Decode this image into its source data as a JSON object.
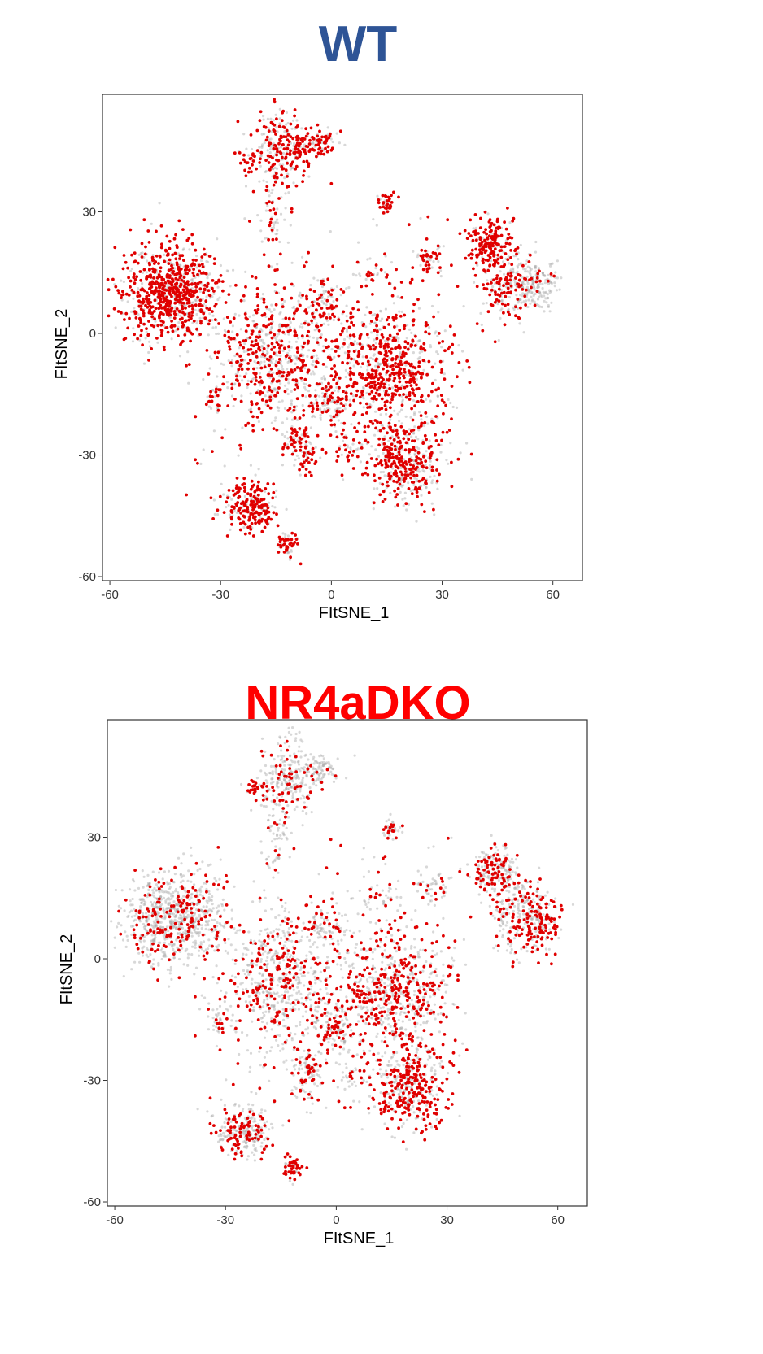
{
  "colors": {
    "wt_title": "#2e5496",
    "ko_title": "#ff0000",
    "highlight_point": "#e00000",
    "background_point": "#a8a8a8",
    "frame": "#333333"
  },
  "chart_data": [
    {
      "type": "scatter",
      "title": "WT",
      "xlabel": "FItSNE_1",
      "ylabel": "FItSNE_2",
      "xlim": [
        -62,
        68
      ],
      "ylim": [
        -61,
        59
      ],
      "xticks": [
        -60,
        -30,
        0,
        30,
        60
      ],
      "yticks": [
        -60,
        -30,
        0,
        30
      ],
      "xtick_labels": [
        "-60",
        "-30",
        "0",
        "30",
        "60"
      ],
      "ytick_labels": [
        "-60",
        "-30",
        "0",
        "30"
      ],
      "grid": false,
      "legend": "none",
      "highlight_fraction": 0.6,
      "series": [
        {
          "color": "#a8a8a8",
          "values": "background cells"
        },
        {
          "color": "#e00000",
          "values": "highlighted cells"
        }
      ],
      "clusters": [
        {
          "cx": -45,
          "cy": 10,
          "sx": 6,
          "sy": 6,
          "n": 700,
          "hi": 0.7
        },
        {
          "cx": -36,
          "cy": 10,
          "sx": 4,
          "sy": 5,
          "n": 120,
          "hi": 0.4
        },
        {
          "cx": -13,
          "cy": 45,
          "sx": 4,
          "sy": 5,
          "n": 260,
          "hi": 0.5
        },
        {
          "cx": -4,
          "cy": 47,
          "sx": 3,
          "sy": 2,
          "n": 80,
          "hi": 0.75
        },
        {
          "cx": -22,
          "cy": 43,
          "sx": 1.5,
          "sy": 1.5,
          "n": 20,
          "hi": 0.9
        },
        {
          "cx": -16,
          "cy": 30,
          "sx": 2,
          "sy": 5,
          "n": 60,
          "hi": 0.4
        },
        {
          "cx": 15,
          "cy": 32,
          "sx": 1.2,
          "sy": 1.2,
          "n": 40,
          "hi": 0.6
        },
        {
          "cx": 26,
          "cy": 18,
          "sx": 2,
          "sy": 2,
          "n": 50,
          "hi": 0.7
        },
        {
          "cx": 43,
          "cy": 22,
          "sx": 3,
          "sy": 3,
          "n": 180,
          "hi": 0.8
        },
        {
          "cx": 48,
          "cy": 12,
          "sx": 4,
          "sy": 5,
          "n": 200,
          "hi": 0.5
        },
        {
          "cx": 55,
          "cy": 12,
          "sx": 3,
          "sy": 3,
          "n": 180,
          "hi": 0.05
        },
        {
          "cx": -15,
          "cy": -5,
          "sx": 8,
          "sy": 9,
          "n": 650,
          "hi": 0.5
        },
        {
          "cx": -2,
          "cy": 8,
          "sx": 3,
          "sy": 3,
          "n": 80,
          "hi": 0.5
        },
        {
          "cx": 15,
          "cy": -8,
          "sx": 8,
          "sy": 8,
          "n": 700,
          "hi": 0.6
        },
        {
          "cx": 0,
          "cy": -17,
          "sx": 3,
          "sy": 3,
          "n": 100,
          "hi": 0.5
        },
        {
          "cx": -8,
          "cy": -28,
          "sx": 2.5,
          "sy": 3,
          "n": 100,
          "hi": 0.6
        },
        {
          "cx": 20,
          "cy": -32,
          "sx": 5,
          "sy": 5,
          "n": 400,
          "hi": 0.55
        },
        {
          "cx": 5,
          "cy": -29,
          "sx": 2,
          "sy": 1.5,
          "n": 30,
          "hi": 0.5
        },
        {
          "cx": -32,
          "cy": -16,
          "sx": 1,
          "sy": 2,
          "n": 25,
          "hi": 0.6
        },
        {
          "cx": -22,
          "cy": -43,
          "sx": 4,
          "sy": 3,
          "n": 250,
          "hi": 0.7
        },
        {
          "cx": -12,
          "cy": -52,
          "sx": 1.5,
          "sy": 1.5,
          "n": 50,
          "hi": 0.7
        },
        {
          "cx": 12,
          "cy": 15,
          "sx": 3,
          "sy": 1.5,
          "n": 30,
          "hi": 0.5
        }
      ]
    },
    {
      "type": "scatter",
      "title": "NR4aDKO",
      "xlabel": "FItSNE_1",
      "ylabel": "FItSNE_2",
      "xlim": [
        -62,
        68
      ],
      "ylim": [
        -61,
        59
      ],
      "xticks": [
        -60,
        -30,
        0,
        30,
        60
      ],
      "yticks": [
        -60,
        -30,
        0,
        30
      ],
      "xtick_labels": [
        "-60",
        "-30",
        "0",
        "30",
        "60"
      ],
      "ytick_labels": [
        "-60",
        "-30",
        "0",
        "30"
      ],
      "grid": false,
      "legend": "none",
      "highlight_fraction": 0.35,
      "series": [
        {
          "color": "#a8a8a8",
          "values": "background cells"
        },
        {
          "color": "#e00000",
          "values": "highlighted cells"
        }
      ],
      "clusters": [
        {
          "cx": -45,
          "cy": 10,
          "sx": 6,
          "sy": 6,
          "n": 700,
          "hi": 0.2
        },
        {
          "cx": -36,
          "cy": 10,
          "sx": 4,
          "sy": 5,
          "n": 120,
          "hi": 0.2
        },
        {
          "cx": -13,
          "cy": 45,
          "sx": 4,
          "sy": 5,
          "n": 260,
          "hi": 0.2
        },
        {
          "cx": -4,
          "cy": 47,
          "sx": 3,
          "sy": 2,
          "n": 80,
          "hi": 0.1
        },
        {
          "cx": -22,
          "cy": 42,
          "sx": 1.5,
          "sy": 1.5,
          "n": 25,
          "hi": 0.9
        },
        {
          "cx": -16,
          "cy": 30,
          "sx": 2,
          "sy": 5,
          "n": 60,
          "hi": 0.2
        },
        {
          "cx": 15,
          "cy": 32,
          "sx": 1.2,
          "sy": 1.2,
          "n": 40,
          "hi": 0.3
        },
        {
          "cx": 26,
          "cy": 18,
          "sx": 2,
          "sy": 2,
          "n": 50,
          "hi": 0.2
        },
        {
          "cx": 43,
          "cy": 22,
          "sx": 3,
          "sy": 3,
          "n": 180,
          "hi": 0.35
        },
        {
          "cx": 48,
          "cy": 12,
          "sx": 4,
          "sy": 5,
          "n": 200,
          "hi": 0.3
        },
        {
          "cx": 55,
          "cy": 10,
          "sx": 3,
          "sy": 4,
          "n": 180,
          "hi": 0.6
        },
        {
          "cx": -15,
          "cy": -5,
          "sx": 8,
          "sy": 9,
          "n": 650,
          "hi": 0.3
        },
        {
          "cx": -2,
          "cy": 8,
          "sx": 3,
          "sy": 3,
          "n": 80,
          "hi": 0.3
        },
        {
          "cx": 15,
          "cy": -8,
          "sx": 8,
          "sy": 8,
          "n": 700,
          "hi": 0.45
        },
        {
          "cx": 0,
          "cy": -17,
          "sx": 3,
          "sy": 3,
          "n": 100,
          "hi": 0.3
        },
        {
          "cx": -8,
          "cy": -28,
          "sx": 2.5,
          "sy": 3,
          "n": 100,
          "hi": 0.35
        },
        {
          "cx": 20,
          "cy": -32,
          "sx": 5,
          "sy": 5,
          "n": 400,
          "hi": 0.55
        },
        {
          "cx": 5,
          "cy": -29,
          "sx": 2,
          "sy": 1.5,
          "n": 30,
          "hi": 0.4
        },
        {
          "cx": -32,
          "cy": -16,
          "sx": 1,
          "sy": 2,
          "n": 25,
          "hi": 0.2
        },
        {
          "cx": -25,
          "cy": -43,
          "sx": 4,
          "sy": 3,
          "n": 250,
          "hi": 0.35
        },
        {
          "cx": -12,
          "cy": -52,
          "sx": 1.5,
          "sy": 1.5,
          "n": 50,
          "hi": 0.6
        },
        {
          "cx": 12,
          "cy": 15,
          "sx": 3,
          "sy": 1.5,
          "n": 30,
          "hi": 0.2
        }
      ]
    }
  ]
}
